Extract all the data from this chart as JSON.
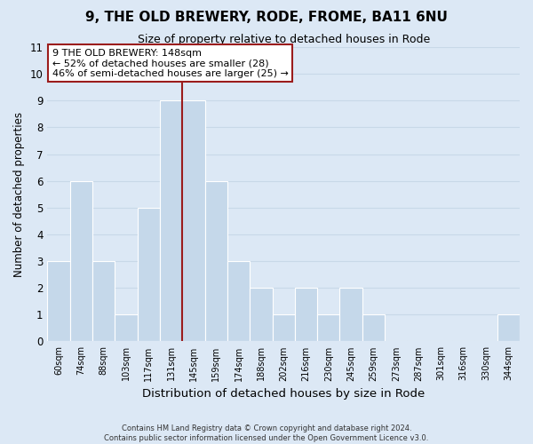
{
  "title": "9, THE OLD BREWERY, RODE, FROME, BA11 6NU",
  "subtitle": "Size of property relative to detached houses in Rode",
  "xlabel": "Distribution of detached houses by size in Rode",
  "ylabel": "Number of detached properties",
  "bar_labels": [
    "60sqm",
    "74sqm",
    "88sqm",
    "103sqm",
    "117sqm",
    "131sqm",
    "145sqm",
    "159sqm",
    "174sqm",
    "188sqm",
    "202sqm",
    "216sqm",
    "230sqm",
    "245sqm",
    "259sqm",
    "273sqm",
    "287sqm",
    "301sqm",
    "316sqm",
    "330sqm",
    "344sqm"
  ],
  "bar_values": [
    3,
    6,
    3,
    1,
    5,
    9,
    9,
    6,
    3,
    2,
    1,
    2,
    1,
    2,
    1,
    0,
    0,
    0,
    0,
    0,
    1
  ],
  "bar_color": "#c5d8ea",
  "bar_edge_color": "#ffffff",
  "subject_line_color": "#9b1c1c",
  "ylim": [
    0,
    11
  ],
  "yticks": [
    0,
    1,
    2,
    3,
    4,
    5,
    6,
    7,
    8,
    9,
    10,
    11
  ],
  "annotation_title": "9 THE OLD BREWERY: 148sqm",
  "annotation_line1": "← 52% of detached houses are smaller (28)",
  "annotation_line2": "46% of semi-detached houses are larger (25) →",
  "annotation_box_color": "#ffffff",
  "annotation_box_edge": "#9b1c1c",
  "grid_color": "#c8d8e8",
  "background_color": "#dce8f5",
  "footer_line1": "Contains HM Land Registry data © Crown copyright and database right 2024.",
  "footer_line2": "Contains public sector information licensed under the Open Government Licence v3.0."
}
